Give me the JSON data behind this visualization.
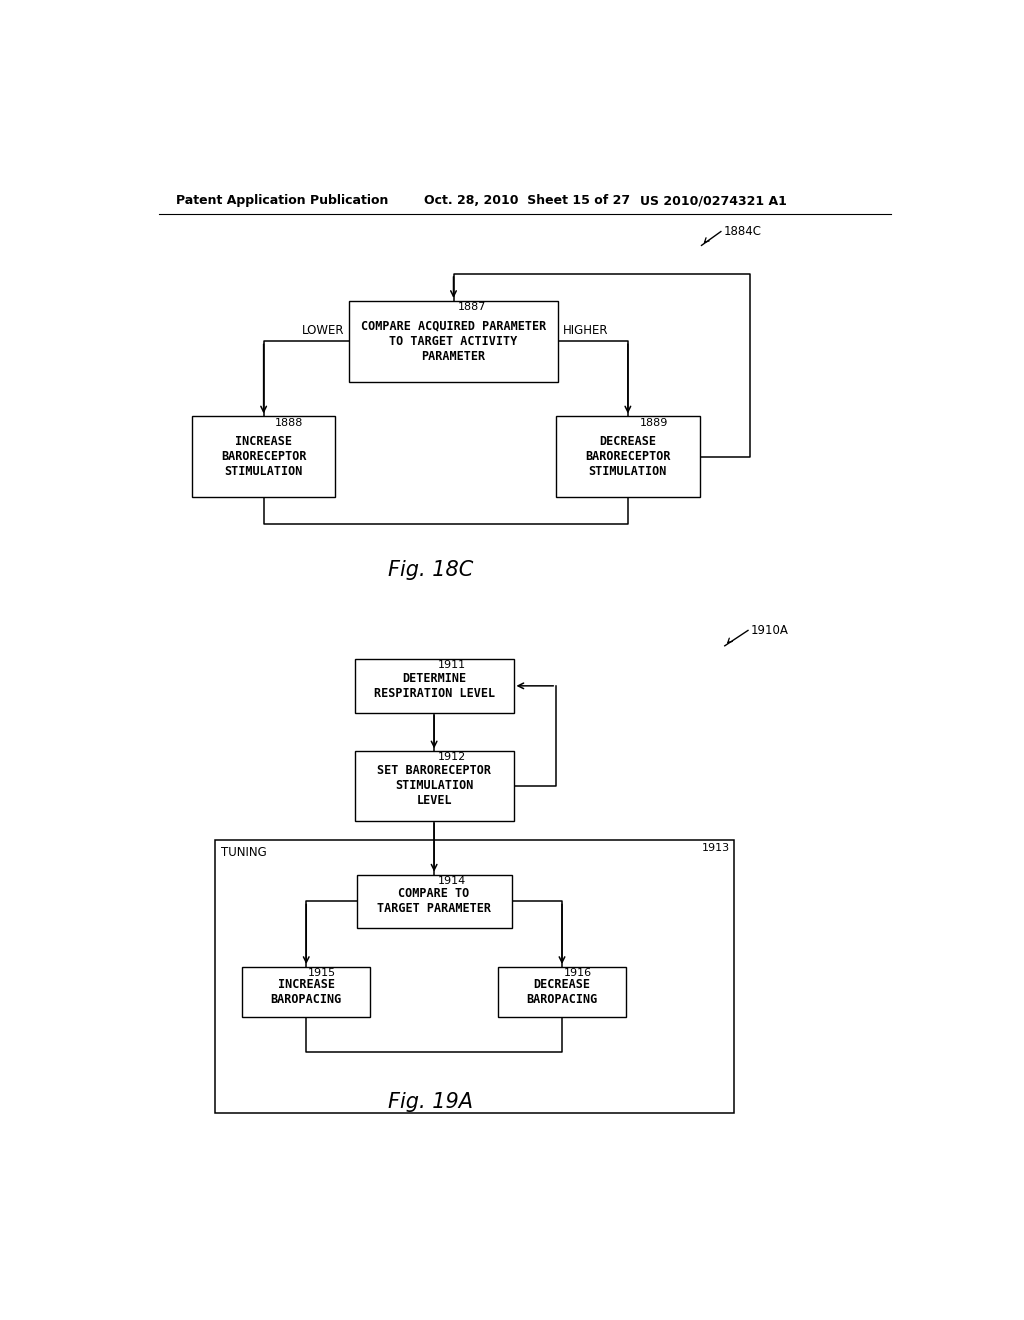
{
  "bg_color": "#ffffff",
  "header_left": "Patent Application Publication",
  "header_mid": "Oct. 28, 2010  Sheet 15 of 27",
  "header_right": "US 2010/0274321 A1",
  "fig18c_label": "1884C",
  "fig18c_caption": "Fig. 18C",
  "box1887_text": "COMPARE ACQUIRED PARAMETER\nTO TARGET ACTIVITY\nPARAMETER",
  "box1887_label": "1887",
  "box1888_text": "INCREASE\nBARORECEPTOR\nSTIMULATION",
  "box1888_label": "1888",
  "box1889_text": "DECREASE\nBARORECEPTOR\nSTIMULATION",
  "box1889_label": "1889",
  "lower_label": "LOWER",
  "higher_label": "HIGHER",
  "fig19a_label": "1910A",
  "fig19a_caption": "Fig. 19A",
  "box1911_text": "DETERMINE\nRESPIRATION LEVEL",
  "box1911_label": "1911",
  "box1912_text": "SET BARORECEPTOR\nSTIMULATION\nLEVEL",
  "box1912_label": "1912",
  "tuning_label": "TUNING",
  "tuning_box_label": "1913",
  "box1914_text": "COMPARE TO\nTARGET PARAMETER",
  "box1914_label": "1914",
  "box1915_text": "INCREASE\nBAROPACING",
  "box1915_label": "1915",
  "box1916_text": "DECREASE\nBAROPACING",
  "box1916_label": "1916",
  "text_color": "#000000",
  "box_edge_color": "#000000",
  "line_color": "#000000"
}
